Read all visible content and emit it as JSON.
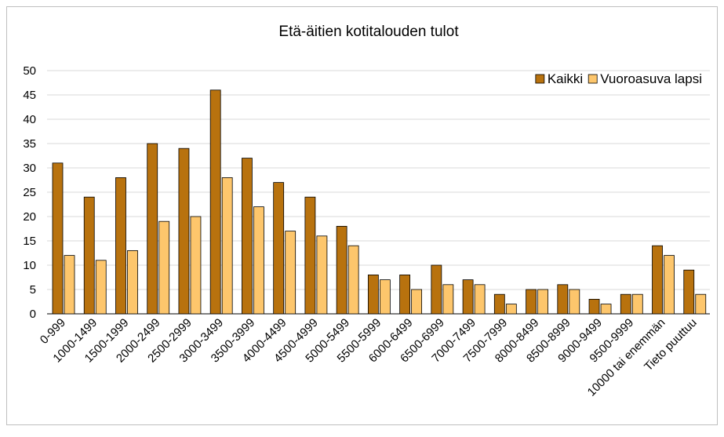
{
  "chart_data": {
    "type": "bar",
    "title": "Etä-äitien kotitalouden tulot",
    "categories": [
      "0-999",
      "1000-1499",
      "1500-1999",
      "2000-2499",
      "2500-2999",
      "3000-3499",
      "3500-3999",
      "4000-4499",
      "4500-4999",
      "5000-5499",
      "5500-5999",
      "6000-6499",
      "6500-6999",
      "7000-7499",
      "7500-7999",
      "8000-8499",
      "8500-8999",
      "9000-9499",
      "9500-9999",
      "10000 tai enemmän",
      "Tieto puuttuu"
    ],
    "series": [
      {
        "name": "Kaikki",
        "color": "#b8720e",
        "values": [
          31,
          24,
          28,
          35,
          34,
          46,
          32,
          27,
          24,
          18,
          8,
          8,
          10,
          7,
          4,
          5,
          6,
          3,
          4,
          14,
          9
        ]
      },
      {
        "name": "Vuoroasuva lapsi",
        "color": "#fdc66c",
        "values": [
          12,
          11,
          13,
          19,
          20,
          28,
          22,
          17,
          16,
          14,
          7,
          5,
          6,
          6,
          2,
          5,
          5,
          2,
          4,
          12,
          4
        ]
      }
    ],
    "ylim": [
      0,
      50
    ],
    "yticks": [
      0,
      5,
      10,
      15,
      20,
      25,
      30,
      35,
      40,
      45,
      50
    ],
    "grid": true,
    "legend": "top-right"
  }
}
